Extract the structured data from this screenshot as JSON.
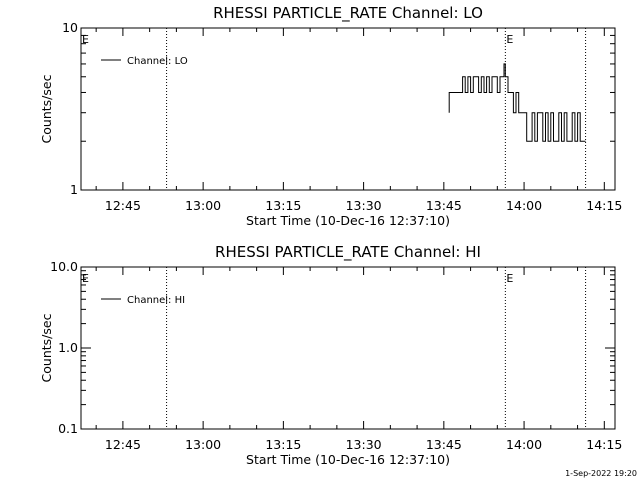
{
  "chart_data": [
    {
      "type": "line",
      "title": "RHESSI PARTICLE_RATE Channel: LO",
      "xlabel": "Start Time (10-Dec-16 12:37:10)",
      "ylabel": "Counts/sec",
      "yscale": "log",
      "ylim": [
        1,
        10
      ],
      "y_tick_labels": [
        "1",
        "10"
      ],
      "xlim": [
        "12:37:10",
        "14:17:00"
      ],
      "x_tick_labels": [
        "12:45",
        "13:00",
        "13:15",
        "13:30",
        "13:45",
        "14:00",
        "14:15"
      ],
      "grid": false,
      "legend": {
        "position": "top-left",
        "entries": [
          "Channel: LO"
        ]
      },
      "markers": [
        {
          "time": "12:53:10",
          "label": ""
        },
        {
          "time": "13:56:30",
          "label": "E"
        },
        {
          "time": "14:11:30",
          "label": ""
        }
      ],
      "start_marker_label": "E",
      "series": [
        {
          "name": "Channel: LO",
          "x": [
            "13:46:00",
            "13:46:00",
            "13:46:30",
            "13:47:00",
            "13:48:00",
            "13:48:30",
            "13:49:00",
            "13:49:30",
            "13:50:00",
            "13:50:30",
            "13:51:00",
            "13:51:30",
            "13:52:00",
            "13:52:30",
            "13:53:00",
            "13:53:30",
            "13:54:00",
            "13:54:30",
            "13:55:00",
            "13:55:30",
            "13:56:00",
            "13:56:15",
            "13:56:30",
            "13:57:00",
            "13:57:30",
            "13:58:00",
            "13:58:30",
            "13:59:00",
            "13:59:30",
            "14:00:00",
            "14:00:30",
            "14:01:00",
            "14:01:30",
            "14:02:00",
            "14:02:30",
            "14:03:00",
            "14:03:30",
            "14:04:00",
            "14:04:30",
            "14:05:00",
            "14:05:30",
            "14:06:00",
            "14:06:30",
            "14:07:00",
            "14:07:30",
            "14:08:00",
            "14:08:30",
            "14:09:00",
            "14:09:30",
            "14:10:00",
            "14:10:30",
            "14:11:00",
            "14:11:30"
          ],
          "y": [
            3,
            4,
            4,
            4,
            4,
            5,
            4,
            5,
            4,
            5,
            5,
            4,
            5,
            4,
            5,
            4,
            5,
            5,
            4,
            5,
            5,
            6,
            5,
            4,
            4,
            3,
            4,
            3,
            3,
            3,
            2,
            2,
            3,
            2,
            3,
            3,
            2,
            3,
            2,
            3,
            2,
            2,
            3,
            2,
            3,
            2,
            2,
            3,
            2,
            3,
            2,
            2,
            2
          ]
        }
      ]
    },
    {
      "type": "line",
      "title": "RHESSI PARTICLE_RATE Channel: HI",
      "xlabel": "Start Time (10-Dec-16 12:37:10)",
      "ylabel": "Counts/sec",
      "yscale": "log",
      "ylim": [
        0.1,
        10
      ],
      "y_tick_labels": [
        "0.1",
        "1.0",
        "10.0"
      ],
      "xlim": [
        "12:37:10",
        "14:17:00"
      ],
      "x_tick_labels": [
        "12:45",
        "13:00",
        "13:15",
        "13:30",
        "13:45",
        "14:00",
        "14:15"
      ],
      "grid": false,
      "legend": {
        "position": "top-left",
        "entries": [
          "Channel: HI"
        ]
      },
      "markers": [
        {
          "time": "12:53:10",
          "label": ""
        },
        {
          "time": "13:56:30",
          "label": "E"
        },
        {
          "time": "14:11:30",
          "label": ""
        }
      ],
      "start_marker_label": "E",
      "series": [
        {
          "name": "Channel: HI",
          "x": [],
          "y": []
        }
      ]
    }
  ],
  "footer": {
    "timestamp": "1-Sep-2022 19:20"
  }
}
